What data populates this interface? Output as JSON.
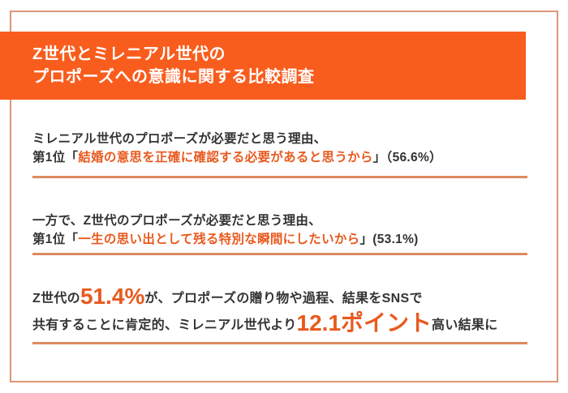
{
  "page": {
    "colors": {
      "banner": "#F95D1D",
      "emphasis": "#E85A1F",
      "text": "#333333",
      "rule": "#DC8A60",
      "frame": "#DE9678"
    }
  },
  "header": {
    "title_line1": "Z世代とミレニアル世代の",
    "title_line2": "プロポーズへの意識に関する比較調査"
  },
  "findings": [
    {
      "intro": "ミレニアル世代のプロポーズが必要だと思う理由、",
      "rank_prefix": "第1位「",
      "highlight": "結婚の意思を正確に確認する必要があると思うから",
      "suffix": "」（56.6%）"
    },
    {
      "intro": "一方で、Z世代のプロポーズが必要だと思う理由、",
      "rank_prefix": "第1位「",
      "highlight": "一生の思い出として残る特別な瞬間にしたいから",
      "suffix": "」(53.1%)"
    },
    {
      "line1_prefix": "Z世代の",
      "line1_big": "51.4%",
      "line1_suffix": "が、プロポーズの贈り物や過程、結果をSNSで",
      "line2_prefix": "共有することに肯定的、ミレニアル世代より",
      "line2_big": "12.1ポイント",
      "line2_suffix": "高い結果に"
    }
  ]
}
